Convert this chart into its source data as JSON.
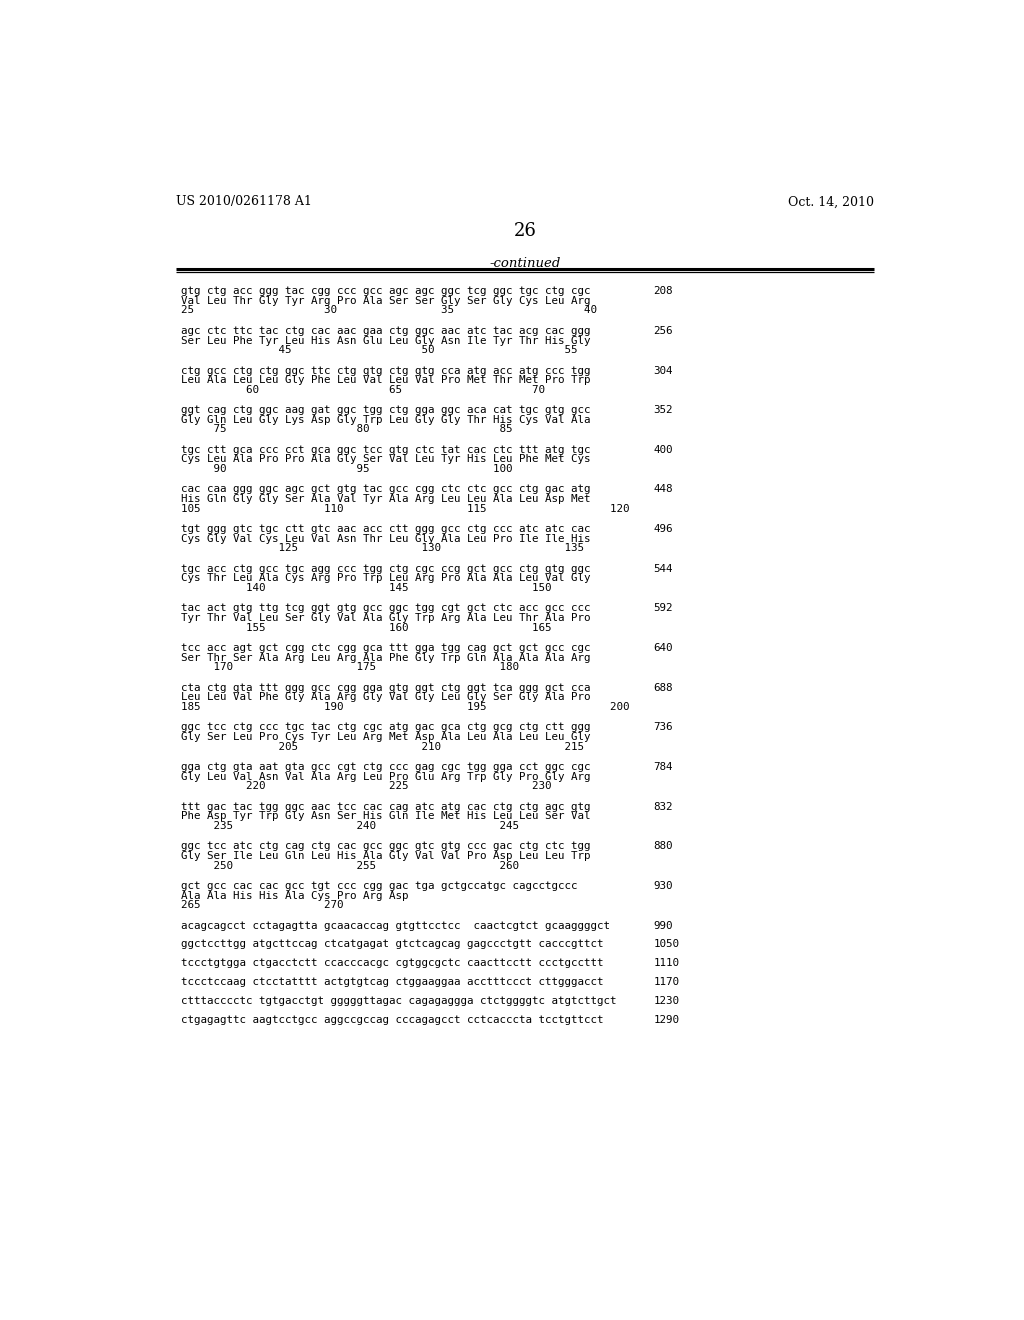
{
  "bg_color": "#ffffff",
  "header_left": "US 2010/0261178 A1",
  "header_right": "Oct. 14, 2010",
  "page_number": "26",
  "continued_label": "-continued",
  "seq_blocks": [
    {
      "num": 208,
      "dna": "gtg ctg acc ggg tac cgg ccc gcc agc agc ggc tcg ggc tgc ctg cgc",
      "aa": "Val Leu Thr Gly Tyr Arg Pro Ala Ser Ser Gly Ser Gly Cys Leu Arg",
      "pos": "25                    30                35                    40"
    },
    {
      "num": 256,
      "dna": "agc ctc ttc tac ctg cac aac gaa ctg ggc aac atc tac acg cac ggg",
      "aa": "Ser Leu Phe Tyr Leu His Asn Glu Leu Gly Asn Ile Tyr Thr His Gly",
      "pos": "               45                    50                    55"
    },
    {
      "num": 304,
      "dna": "ctg gcc ctg ctg ggc ttc ctg gtg ctg gtg cca atg acc atg ccc tgg",
      "aa": "Leu Ala Leu Leu Gly Phe Leu Val Leu Val Pro Met Thr Met Pro Trp",
      "pos": "          60                    65                    70"
    },
    {
      "num": 352,
      "dna": "ggt cag ctg ggc aag gat ggc tgg ctg gga ggc aca cat tgc gtg gcc",
      "aa": "Gly Gln Leu Gly Lys Asp Gly Trp Leu Gly Gly Thr His Cys Val Ala",
      "pos": "     75                    80                    85"
    },
    {
      "num": 400,
      "dna": "tgc ctt gca ccc cct gca ggc tcc gtg ctc tat cac ctc ttt atg tgc",
      "aa": "Cys Leu Ala Pro Pro Ala Gly Ser Val Leu Tyr His Leu Phe Met Cys",
      "pos": "     90                    95                   100"
    },
    {
      "num": 448,
      "dna": "cac caa ggg ggc agc gct gtg tac gcc cgg ctc ctc gcc ctg gac atg",
      "aa": "His Gln Gly Gly Ser Ala Val Tyr Ala Arg Leu Leu Ala Leu Asp Met",
      "pos": "105                   110                   115                   120"
    },
    {
      "num": 496,
      "dna": "tgt ggg gtc tgc ctt gtc aac acc ctt ggg gcc ctg ccc atc atc cac",
      "aa": "Cys Gly Val Cys Leu Val Asn Thr Leu Gly Ala Leu Pro Ile Ile His",
      "pos": "               125                   130                   135"
    },
    {
      "num": 544,
      "dna": "tgc acc ctg gcc tgc agg ccc tgg ctg cgc ccg gct gcc ctg gtg ggc",
      "aa": "Cys Thr Leu Ala Cys Arg Pro Trp Leu Arg Pro Ala Ala Leu Val Gly",
      "pos": "          140                   145                   150"
    },
    {
      "num": 592,
      "dna": "tac act gtg ttg tcg ggt gtg gcc ggc tgg cgt gct ctc acc gcc ccc",
      "aa": "Tyr Thr Val Leu Ser Gly Val Ala Gly Trp Arg Ala Leu Thr Ala Pro",
      "pos": "          155                   160                   165"
    },
    {
      "num": 640,
      "dna": "tcc acc agt gct cgg ctc cgg gca ttt gga tgg cag gct gct gcc cgc",
      "aa": "Ser Thr Ser Ala Arg Leu Arg Ala Phe Gly Trp Gln Ala Ala Ala Arg",
      "pos": "     170                   175                   180"
    },
    {
      "num": 688,
      "dna": "cta ctg gta ttt ggg gcc cgg gga gtg ggt ctg ggt tca ggg gct cca",
      "aa": "Leu Leu Val Phe Gly Ala Arg Gly Val Gly Leu Gly Ser Gly Ala Pro",
      "pos": "185                   190                   195                   200"
    },
    {
      "num": 736,
      "dna": "ggc tcc ctg ccc tgc tac ctg cgc atg gac gca ctg gcg ctg ctt ggg",
      "aa": "Gly Ser Leu Pro Cys Tyr Leu Arg Met Asp Ala Leu Ala Leu Leu Gly",
      "pos": "               205                   210                   215"
    },
    {
      "num": 784,
      "dna": "gga ctg gta aat gta gcc cgt ctg ccc gag cgc tgg gga cct ggc cgc",
      "aa": "Gly Leu Val Asn Val Ala Arg Leu Pro Glu Arg Trp Gly Pro Gly Arg",
      "pos": "          220                   225                   230"
    },
    {
      "num": 832,
      "dna": "ttt gac tac tgg ggc aac tcc cac cag atc atg cac ctg ctg agc gtg",
      "aa": "Phe Asp Tyr Trp Gly Asn Ser His Gln Ile Met His Leu Leu Ser Val",
      "pos": "     235                   240                   245"
    },
    {
      "num": 880,
      "dna": "ggc tcc atc ctg cag ctg cac gcc ggc gtc gtg ccc gac ctg ctc tgg",
      "aa": "Gly Ser Ile Leu Gln Leu His Ala Gly Val Val Pro Asp Leu Leu Trp",
      "pos": "     250                   255                   260"
    },
    {
      "num": 930,
      "dna": "gct gcc cac cac gcc tgt ccc cgg gac tga gctgccatgc cagcctgccc",
      "aa": "Ala Ala His His Ala Cys Pro Arg Asp",
      "pos": "265                   270"
    }
  ],
  "plain_lines": [
    {
      "num": 990,
      "dna": "acagcagcct cctagagtta gcaacaccag gtgttcctcc  caactcgtct gcaaggggct"
    },
    {
      "num": 1050,
      "dna": "ggctccttgg atgcttccag ctcatgagat gtctcagcag gagccctgtt cacccgttct"
    },
    {
      "num": 1110,
      "dna": "tccctgtgga ctgacctctt ccacccacgc cgtggcgctc caacttcctt ccctgccttt"
    },
    {
      "num": 1170,
      "dna": "tccctccaag ctcctatttt actgtgtcag ctggaaggaa acctttccct cttgggacct"
    },
    {
      "num": 1230,
      "dna": "ctttacccctc tgtgacctgt gggggttagac cagagaggga ctctggggtc atgtcttgct"
    },
    {
      "num": 1290,
      "dna": "ctgagagttc aagtcctgcc aggccgccag cccagagcct cctcacccta tcctgttcct"
    }
  ]
}
